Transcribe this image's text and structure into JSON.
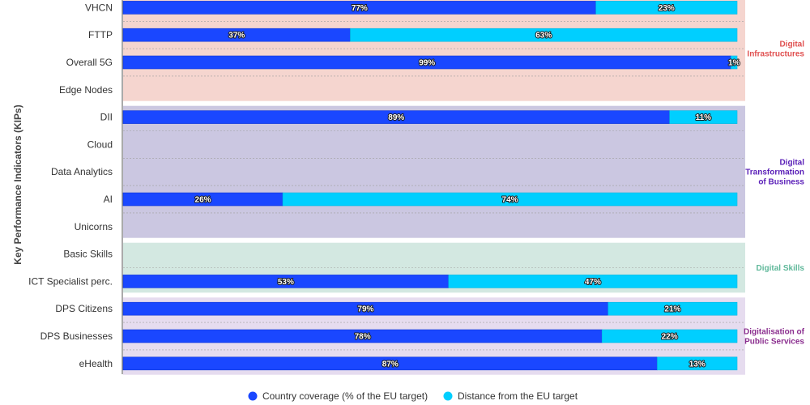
{
  "chart_data": {
    "type": "bar",
    "orientation": "horizontal",
    "stacked": true,
    "ylabel": "Key Performance Indicators (KIPs)",
    "categories": [
      "VHCN",
      "FTTP",
      "Overall 5G",
      "Edge Nodes",
      "DII",
      "Cloud",
      "Data Analytics",
      "AI",
      "Unicorns",
      "Basic Skills",
      "ICT Specialist perc.",
      "DPS Citizens",
      "DPS Businesses",
      "eHealth"
    ],
    "series": [
      {
        "name": "Country coverage (% of the EU target)",
        "color": "#1a47ff",
        "values": [
          77,
          37,
          99,
          null,
          89,
          null,
          null,
          26,
          null,
          null,
          53,
          79,
          78,
          87
        ]
      },
      {
        "name": "Distance from the EU target",
        "color": "#00cfff",
        "values": [
          23,
          63,
          1,
          null,
          11,
          null,
          null,
          74,
          null,
          null,
          47,
          21,
          22,
          13
        ]
      }
    ],
    "value_suffix": "%",
    "xlim": [
      0,
      100
    ],
    "groups": [
      {
        "label": "Digital Infrastructures",
        "lines": [
          "Digital",
          "Infrastructures"
        ],
        "start": 0,
        "end": 3,
        "color": "#f5d5cf",
        "label_color": "#e05050"
      },
      {
        "label": "Digital Transformation of Business",
        "lines": [
          "Digital",
          "Transformation",
          "of Business"
        ],
        "start": 4,
        "end": 8,
        "color": "#cbc7e1",
        "label_color": "#5a1fb8"
      },
      {
        "label": "Digital Skills",
        "lines": [
          "Digital Skills"
        ],
        "start": 9,
        "end": 10,
        "color": "#d3e8e1",
        "label_color": "#5fb89a"
      },
      {
        "label": "Digitalisation of Public Services",
        "lines": [
          "Digitalisation of",
          "Public Services"
        ],
        "start": 11,
        "end": 13,
        "color": "#e6dcef",
        "label_color": "#8b2e8f"
      }
    ],
    "legend_position": "bottom-center",
    "grid": false
  }
}
